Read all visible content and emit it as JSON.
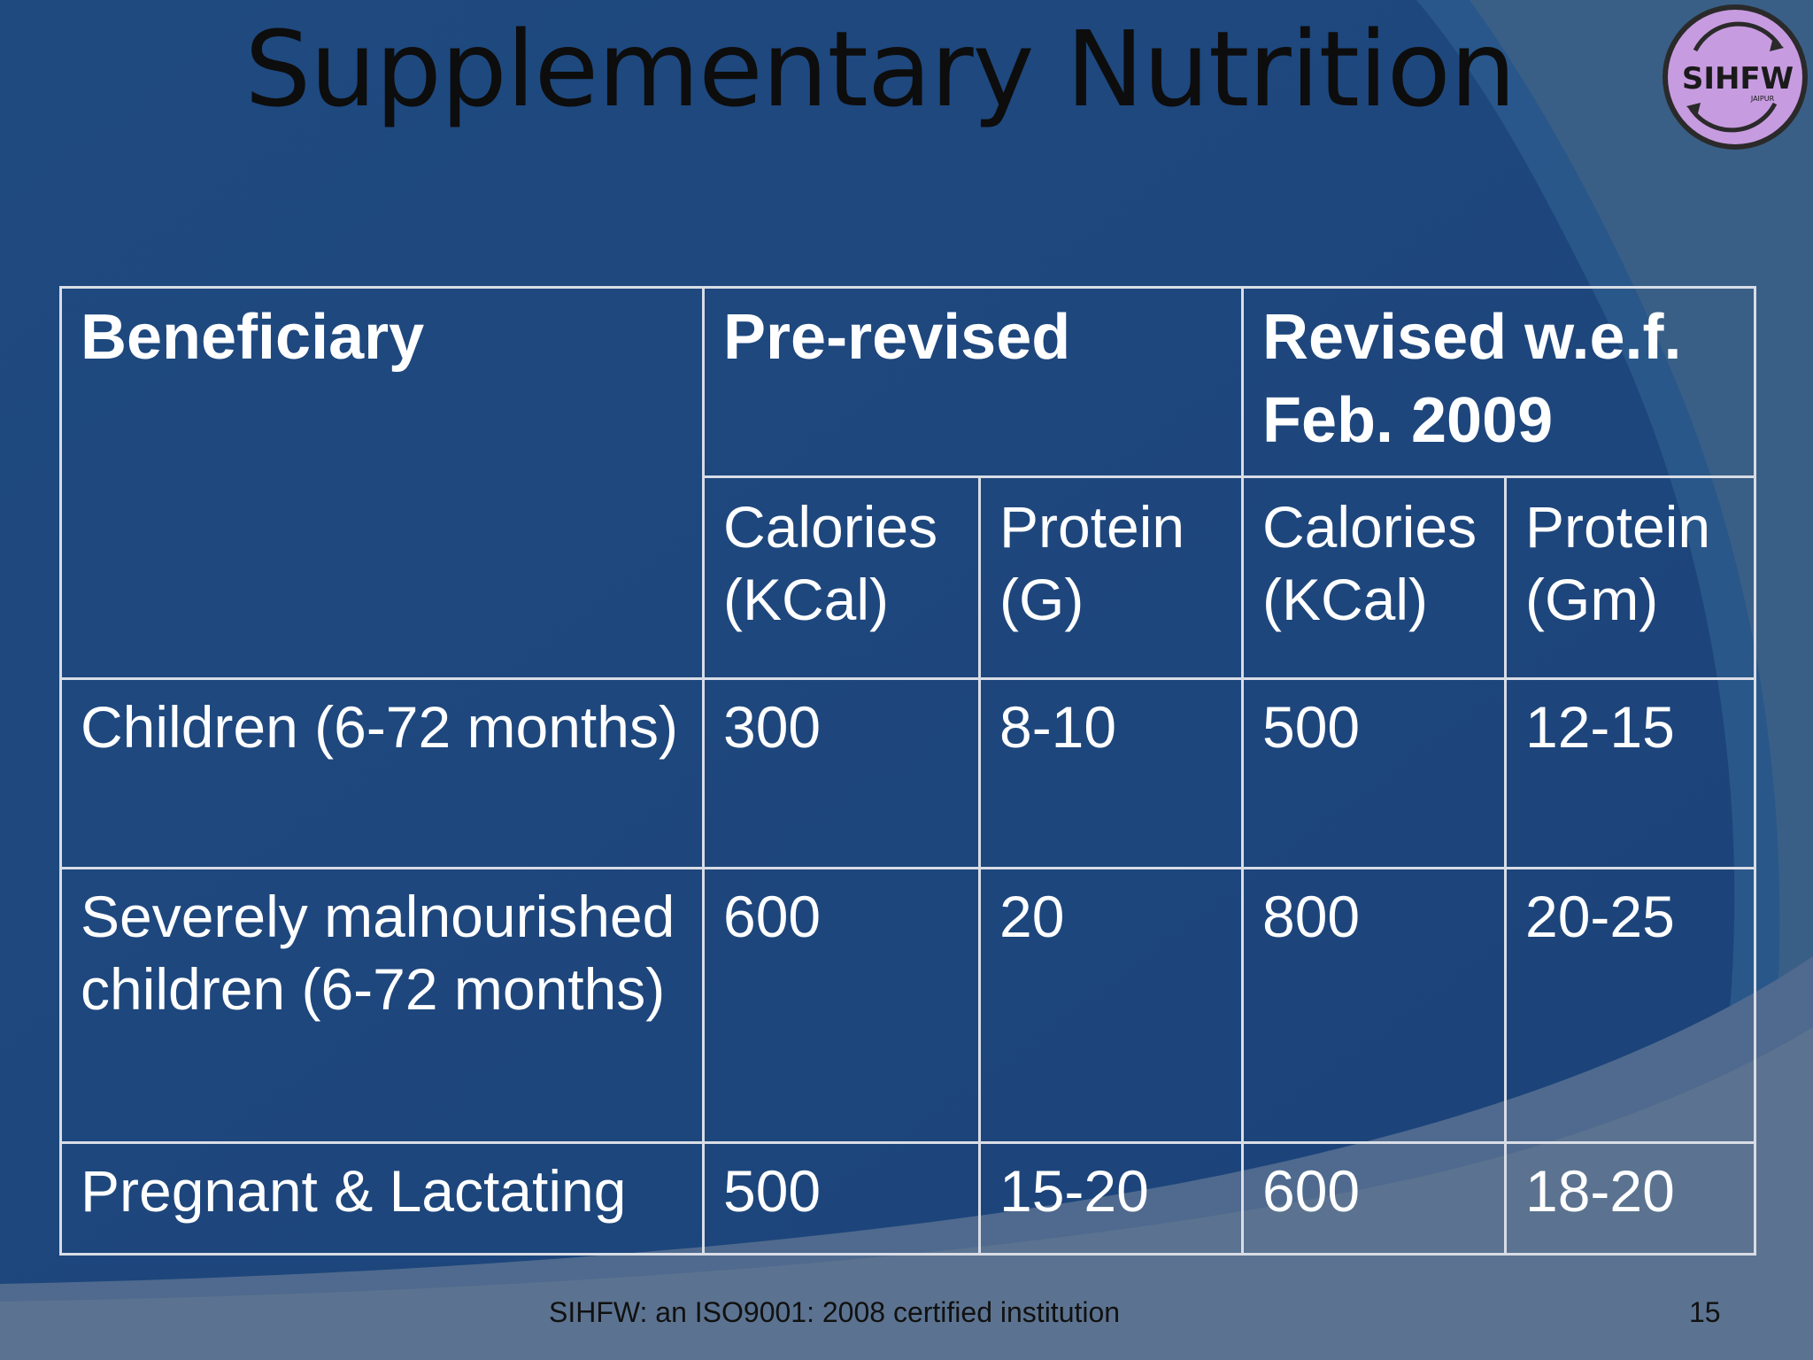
{
  "slide": {
    "title": "Supplementary Nutrition",
    "colors": {
      "background": "#1f497d",
      "table_border": "#d9dde6",
      "text": "#ffffff",
      "title_text": "#0d0d0d",
      "logo_fill": "#c79be0"
    }
  },
  "logo": {
    "icon": "sihfw-logo-icon",
    "text": "SIHFW",
    "subtext": "JAIPUR"
  },
  "table": {
    "headers": {
      "beneficiary": "Beneficiary",
      "pre_revised": "Pre-revised",
      "revised": "Revised w.e.f. Feb. 2009"
    },
    "subheaders": [
      "Calories (KCal)",
      "Protein (G)",
      "Calories (KCal)",
      "Protein (Gm)"
    ],
    "rows": [
      {
        "beneficiary": "Children (6-72 months)",
        "pre_calories": "300",
        "pre_protein": "8-10",
        "rev_calories": "500",
        "rev_protein": "12-15"
      },
      {
        "beneficiary": "Severely malnourished children (6-72 months)",
        "pre_calories": "600",
        "pre_protein": "20",
        "rev_calories": "800",
        "rev_protein": "20-25"
      },
      {
        "beneficiary": "Pregnant & Lactating",
        "pre_calories": "500",
        "pre_protein": "15-20",
        "rev_calories": "600",
        "rev_protein": "18-20"
      }
    ]
  },
  "footer": {
    "text": "SIHFW: an ISO9001: 2008 certified institution",
    "page_number": "15"
  }
}
